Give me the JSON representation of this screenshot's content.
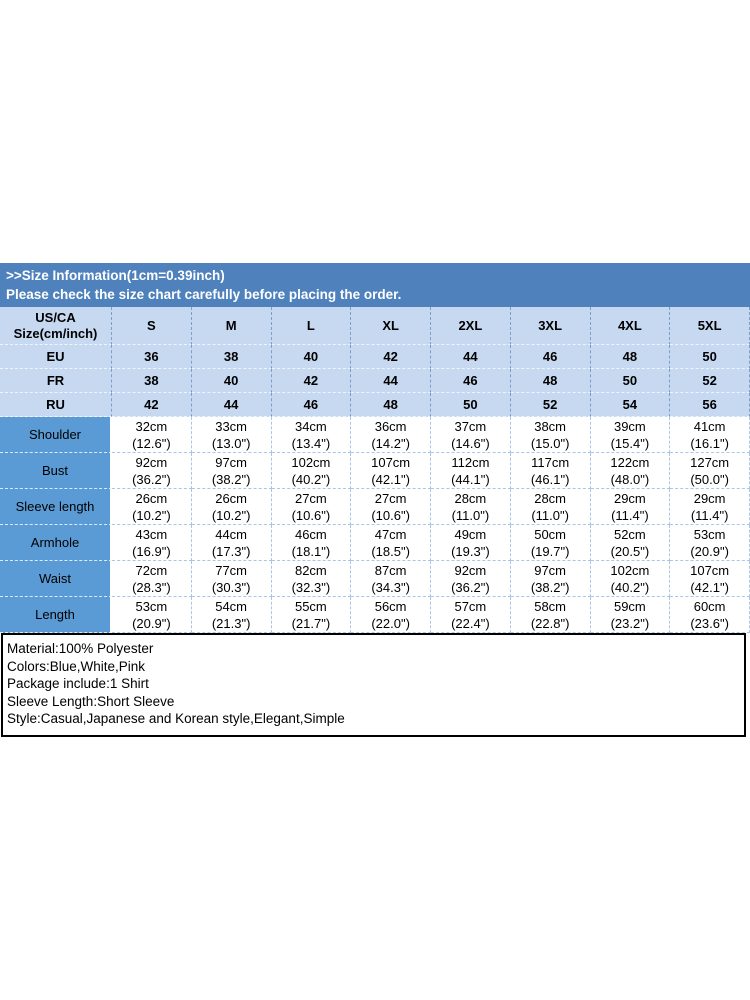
{
  "banner": {
    "line1": ">>Size Information(1cm=0.39inch)",
    "line2": "Please check the size chart carefully before placing the order."
  },
  "size_table": {
    "corner_label_line1": "US/CA",
    "corner_label_line2": "Size(cm/inch)",
    "size_columns": [
      "S",
      "M",
      "L",
      "XL",
      "2XL",
      "3XL",
      "4XL",
      "5XL"
    ],
    "region_rows": [
      {
        "label": "EU",
        "values": [
          "36",
          "38",
          "40",
          "42",
          "44",
          "46",
          "48",
          "50"
        ]
      },
      {
        "label": "FR",
        "values": [
          "38",
          "40",
          "42",
          "44",
          "46",
          "48",
          "50",
          "52"
        ]
      },
      {
        "label": "RU",
        "values": [
          "42",
          "44",
          "46",
          "48",
          "50",
          "52",
          "54",
          "56"
        ]
      }
    ],
    "measurement_rows": [
      {
        "label": "Shoulder",
        "cm": [
          "32cm",
          "33cm",
          "34cm",
          "36cm",
          "37cm",
          "38cm",
          "39cm",
          "41cm"
        ],
        "inch": [
          "(12.6\")",
          "(13.0\")",
          "(13.4\")",
          "(14.2\")",
          "(14.6\")",
          "(15.0\")",
          "(15.4\")",
          "(16.1\")"
        ]
      },
      {
        "label": "Bust",
        "cm": [
          "92cm",
          "97cm",
          "102cm",
          "107cm",
          "112cm",
          "117cm",
          "122cm",
          "127cm"
        ],
        "inch": [
          "(36.2\")",
          "(38.2\")",
          "(40.2\")",
          "(42.1\")",
          "(44.1\")",
          "(46.1\")",
          "(48.0\")",
          "(50.0\")"
        ]
      },
      {
        "label": "Sleeve length",
        "cm": [
          "26cm",
          "26cm",
          "27cm",
          "27cm",
          "28cm",
          "28cm",
          "29cm",
          "29cm"
        ],
        "inch": [
          "(10.2\")",
          "(10.2\")",
          "(10.6\")",
          "(10.6\")",
          "(11.0\")",
          "(11.0\")",
          "(11.4\")",
          "(11.4\")"
        ]
      },
      {
        "label": "Armhole",
        "cm": [
          "43cm",
          "44cm",
          "46cm",
          "47cm",
          "49cm",
          "50cm",
          "52cm",
          "53cm"
        ],
        "inch": [
          "(16.9\")",
          "(17.3\")",
          "(18.1\")",
          "(18.5\")",
          "(19.3\")",
          "(19.7\")",
          "(20.5\")",
          "(20.9\")"
        ]
      },
      {
        "label": "Waist",
        "cm": [
          "72cm",
          "77cm",
          "82cm",
          "87cm",
          "92cm",
          "97cm",
          "102cm",
          "107cm"
        ],
        "inch": [
          "(28.3\")",
          "(30.3\")",
          "(32.3\")",
          "(34.3\")",
          "(36.2\")",
          "(38.2\")",
          "(40.2\")",
          "(42.1\")"
        ]
      },
      {
        "label": "Length",
        "cm": [
          "53cm",
          "54cm",
          "55cm",
          "56cm",
          "57cm",
          "58cm",
          "59cm",
          "60cm"
        ],
        "inch": [
          "(20.9\")",
          "(21.3\")",
          "(21.7\")",
          "(22.0\")",
          "(22.4\")",
          "(22.8\")",
          "(23.2\")",
          "(23.6\")"
        ]
      }
    ]
  },
  "details": {
    "lines": [
      "Material:100% Polyester",
      "Colors:Blue,White,Pink",
      "Package include:1 Shirt",
      "Sleeve Length:Short Sleeve",
      "Style:Casual,Japanese and Korean style,Elegant,Simple"
    ]
  },
  "colors": {
    "banner_bg": "#4f81bd",
    "banner_text": "#ffffff",
    "light_row_bg": "#c6d9f1",
    "label_cell_bg": "#5b9bd5",
    "details_border": "#000000",
    "text": "#000000"
  }
}
